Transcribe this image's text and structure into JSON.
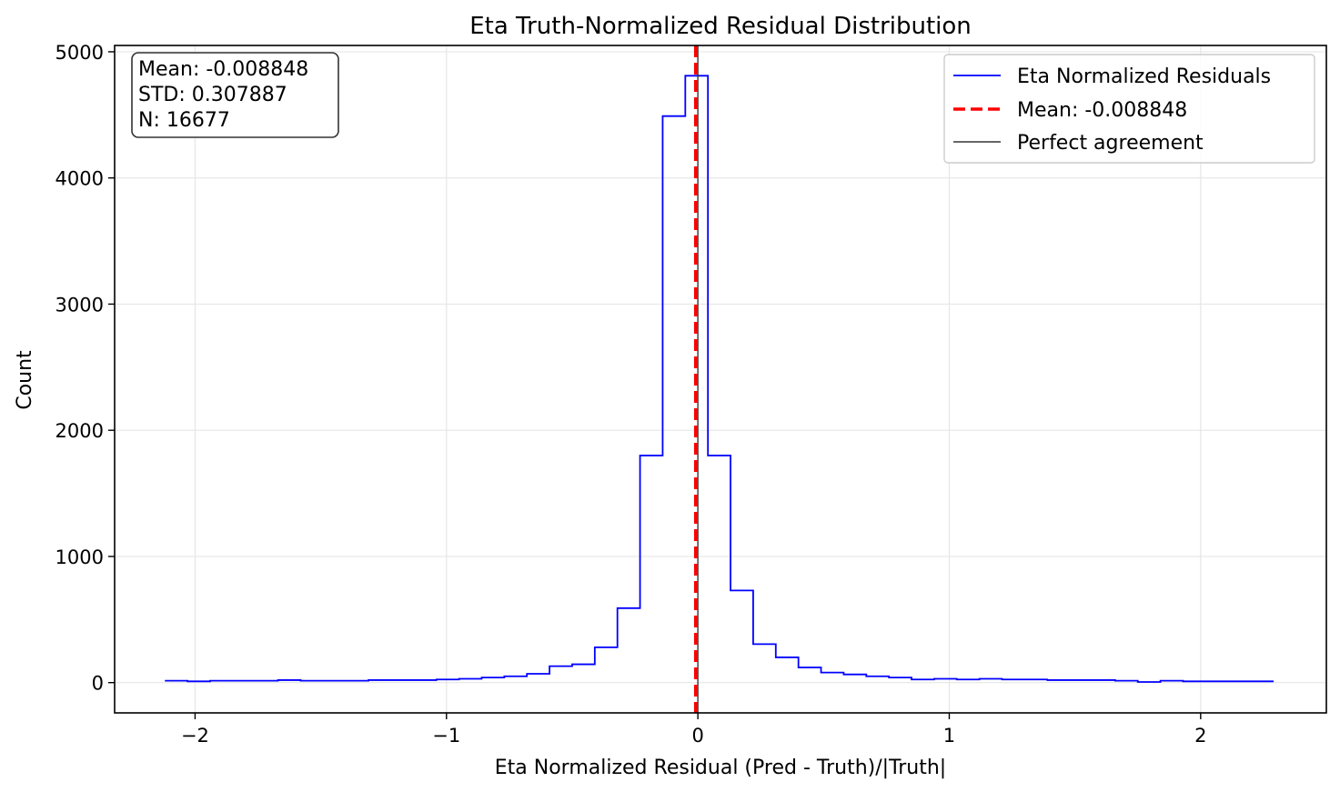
{
  "chart_data": {
    "type": "histogram",
    "title": "Eta Truth-Normalized Residual Distribution",
    "xlabel": "Eta Normalized Residual (Pred - Truth)/|Truth|",
    "ylabel": "Count",
    "xlim": [
      -2.32,
      2.5
    ],
    "ylim": [
      -240,
      5050
    ],
    "x_ticks": [
      -2,
      -1,
      0,
      1,
      2
    ],
    "x_tick_labels": [
      "−2",
      "−1",
      "0",
      "1",
      "2"
    ],
    "y_ticks": [
      0,
      1000,
      2000,
      3000,
      4000,
      5000
    ],
    "y_tick_labels": [
      "0",
      "1000",
      "2000",
      "3000",
      "4000",
      "5000"
    ],
    "grid": true,
    "legend_position": "top-right",
    "series": [
      {
        "name": "Eta Normalized Residuals",
        "style": "step",
        "color": "#0000ff",
        "bin_edges": [
          -2.12,
          -2.03,
          -1.94,
          -1.85,
          -1.76,
          -1.67,
          -1.58,
          -1.49,
          -1.4,
          -1.31,
          -1.22,
          -1.13,
          -1.04,
          -0.95,
          -0.86,
          -0.77,
          -0.68,
          -0.59,
          -0.5,
          -0.41,
          -0.32,
          -0.23,
          -0.14,
          -0.05,
          0.04,
          0.13,
          0.22,
          0.31,
          0.4,
          0.49,
          0.58,
          0.67,
          0.76,
          0.85,
          0.94,
          1.03,
          1.12,
          1.21,
          1.3,
          1.39,
          1.48,
          1.57,
          1.66,
          1.75,
          1.84,
          1.93,
          2.02,
          2.11,
          2.2,
          2.29
        ],
        "counts": [
          15,
          10,
          15,
          15,
          15,
          20,
          15,
          15,
          15,
          20,
          20,
          20,
          25,
          30,
          40,
          50,
          70,
          130,
          145,
          280,
          590,
          1800,
          4490,
          4810,
          1800,
          730,
          305,
          200,
          120,
          80,
          65,
          50,
          40,
          25,
          30,
          25,
          30,
          25,
          25,
          20,
          20,
          20,
          15,
          5,
          15,
          10,
          10,
          10,
          10
        ]
      },
      {
        "name": "Mean: -0.008848",
        "style": "vline",
        "color": "#ff0000",
        "x": -0.008848
      },
      {
        "name": "Perfect agreement",
        "style": "vline",
        "color": "#333333",
        "x": 0
      }
    ],
    "stats_box": [
      "Mean: -0.008848",
      "STD: 0.307887",
      "N: 16677"
    ]
  }
}
